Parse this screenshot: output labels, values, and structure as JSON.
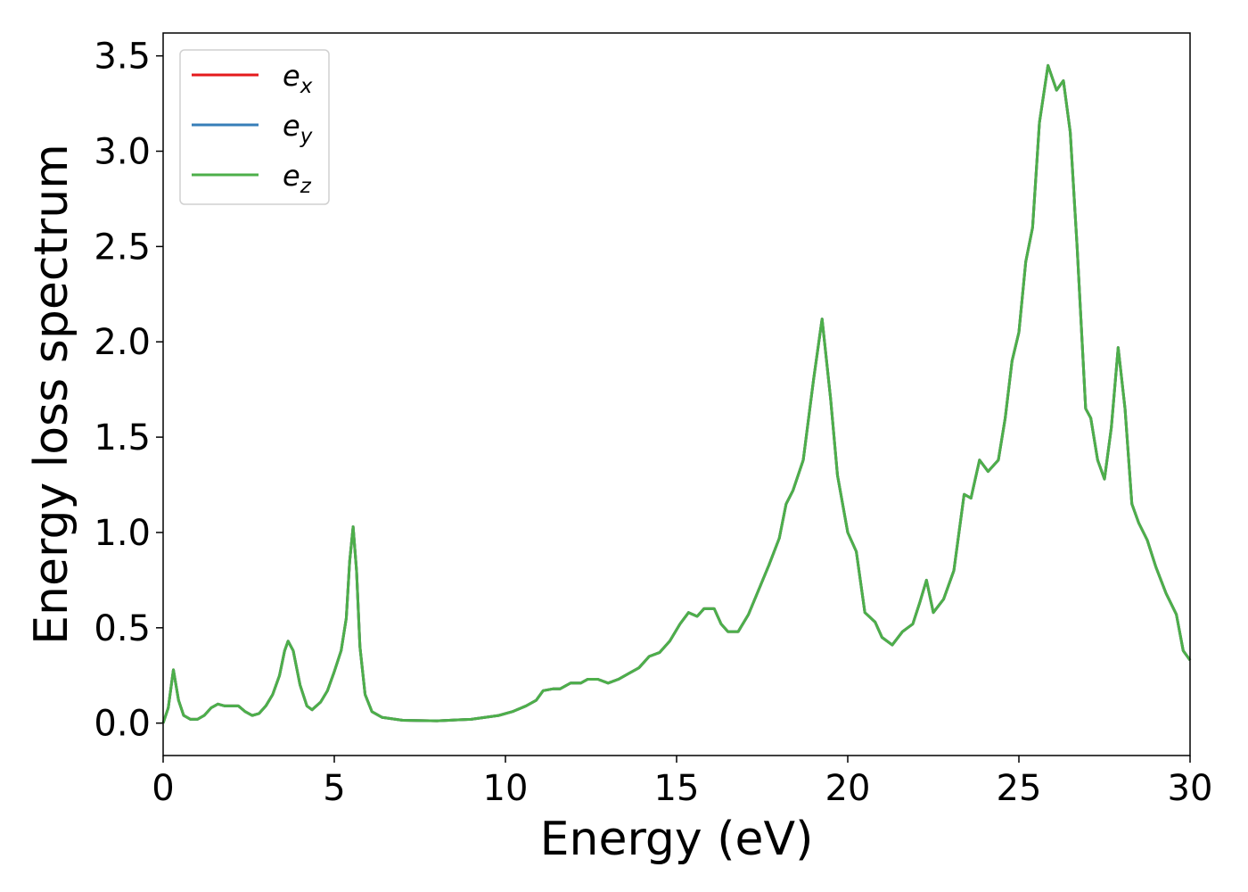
{
  "chart_data": {
    "type": "line",
    "xlabel": "Energy (eV)",
    "ylabel": "Energy loss spectrum",
    "x": [
      0,
      0.15,
      0.3,
      0.45,
      0.6,
      0.8,
      1.0,
      1.2,
      1.4,
      1.6,
      1.8,
      2.0,
      2.2,
      2.4,
      2.6,
      2.8,
      3.0,
      3.2,
      3.4,
      3.55,
      3.65,
      3.8,
      4.0,
      4.2,
      4.35,
      4.6,
      4.8,
      5.0,
      5.2,
      5.35,
      5.45,
      5.55,
      5.65,
      5.75,
      5.9,
      6.1,
      6.4,
      7.0,
      8.0,
      9.0,
      9.8,
      10.2,
      10.6,
      10.9,
      11.1,
      11.4,
      11.6,
      11.9,
      12.2,
      12.4,
      12.7,
      13.0,
      13.3,
      13.6,
      13.9,
      14.2,
      14.5,
      14.8,
      15.1,
      15.35,
      15.6,
      15.8,
      16.1,
      16.3,
      16.5,
      16.8,
      17.1,
      17.4,
      17.7,
      18.0,
      18.2,
      18.4,
      18.7,
      19.0,
      19.25,
      19.5,
      19.7,
      20.0,
      20.25,
      20.5,
      20.8,
      21.0,
      21.3,
      21.6,
      21.9,
      22.1,
      22.3,
      22.5,
      22.8,
      23.1,
      23.4,
      23.6,
      23.85,
      24.1,
      24.4,
      24.6,
      24.8,
      25.0,
      25.2,
      25.4,
      25.6,
      25.85,
      26.1,
      26.3,
      26.5,
      26.7,
      26.95,
      27.1,
      27.3,
      27.5,
      27.7,
      27.9,
      28.1,
      28.3,
      28.5,
      28.75,
      29.0,
      29.3,
      29.6,
      29.8,
      30.0
    ],
    "series": [
      {
        "name": "ex",
        "color": "#e41a1c",
        "values": [
          0,
          0.08,
          0.28,
          0.12,
          0.04,
          0.02,
          0.02,
          0.04,
          0.08,
          0.1,
          0.09,
          0.09,
          0.09,
          0.06,
          0.04,
          0.05,
          0.09,
          0.15,
          0.25,
          0.38,
          0.43,
          0.38,
          0.2,
          0.09,
          0.07,
          0.11,
          0.17,
          0.27,
          0.38,
          0.55,
          0.85,
          1.03,
          0.8,
          0.4,
          0.15,
          0.06,
          0.03,
          0.015,
          0.012,
          0.02,
          0.04,
          0.06,
          0.09,
          0.12,
          0.17,
          0.18,
          0.18,
          0.21,
          0.21,
          0.23,
          0.23,
          0.21,
          0.23,
          0.26,
          0.29,
          0.35,
          0.37,
          0.43,
          0.52,
          0.58,
          0.56,
          0.6,
          0.6,
          0.52,
          0.48,
          0.48,
          0.57,
          0.7,
          0.83,
          0.97,
          1.15,
          1.22,
          1.38,
          1.8,
          2.12,
          1.7,
          1.3,
          1.0,
          0.9,
          0.58,
          0.53,
          0.45,
          0.41,
          0.48,
          0.52,
          0.63,
          0.75,
          0.58,
          0.65,
          0.8,
          1.2,
          1.18,
          1.38,
          1.32,
          1.38,
          1.6,
          1.9,
          2.05,
          2.42,
          2.6,
          3.15,
          3.45,
          3.32,
          3.37,
          3.1,
          2.5,
          1.65,
          1.6,
          1.38,
          1.28,
          1.55,
          1.97,
          1.65,
          1.15,
          1.05,
          0.96,
          0.82,
          0.68,
          0.57,
          0.38,
          0.33
        ]
      },
      {
        "name": "ey",
        "color": "#377eb8",
        "values": [
          0,
          0.08,
          0.28,
          0.12,
          0.04,
          0.02,
          0.02,
          0.04,
          0.08,
          0.1,
          0.09,
          0.09,
          0.09,
          0.06,
          0.04,
          0.05,
          0.09,
          0.15,
          0.25,
          0.38,
          0.43,
          0.38,
          0.2,
          0.09,
          0.07,
          0.11,
          0.17,
          0.27,
          0.38,
          0.55,
          0.85,
          1.03,
          0.8,
          0.4,
          0.15,
          0.06,
          0.03,
          0.015,
          0.012,
          0.02,
          0.04,
          0.06,
          0.09,
          0.12,
          0.17,
          0.18,
          0.18,
          0.21,
          0.21,
          0.23,
          0.23,
          0.21,
          0.23,
          0.26,
          0.29,
          0.35,
          0.37,
          0.43,
          0.52,
          0.58,
          0.56,
          0.6,
          0.6,
          0.52,
          0.48,
          0.48,
          0.57,
          0.7,
          0.83,
          0.97,
          1.15,
          1.22,
          1.38,
          1.8,
          2.12,
          1.7,
          1.3,
          1.0,
          0.9,
          0.58,
          0.53,
          0.45,
          0.41,
          0.48,
          0.52,
          0.63,
          0.75,
          0.58,
          0.65,
          0.8,
          1.2,
          1.18,
          1.38,
          1.32,
          1.38,
          1.6,
          1.9,
          2.05,
          2.42,
          2.6,
          3.15,
          3.45,
          3.32,
          3.37,
          3.1,
          2.5,
          1.65,
          1.6,
          1.38,
          1.28,
          1.55,
          1.97,
          1.65,
          1.15,
          1.05,
          0.96,
          0.82,
          0.68,
          0.57,
          0.38,
          0.33
        ]
      },
      {
        "name": "ez",
        "color": "#4daf4a",
        "values": [
          0,
          0.08,
          0.28,
          0.12,
          0.04,
          0.02,
          0.02,
          0.04,
          0.08,
          0.1,
          0.09,
          0.09,
          0.09,
          0.06,
          0.04,
          0.05,
          0.09,
          0.15,
          0.25,
          0.38,
          0.43,
          0.38,
          0.2,
          0.09,
          0.07,
          0.11,
          0.17,
          0.27,
          0.38,
          0.55,
          0.85,
          1.03,
          0.8,
          0.4,
          0.15,
          0.06,
          0.03,
          0.015,
          0.012,
          0.02,
          0.04,
          0.06,
          0.09,
          0.12,
          0.17,
          0.18,
          0.18,
          0.21,
          0.21,
          0.23,
          0.23,
          0.21,
          0.23,
          0.26,
          0.29,
          0.35,
          0.37,
          0.43,
          0.52,
          0.58,
          0.56,
          0.6,
          0.6,
          0.52,
          0.48,
          0.48,
          0.57,
          0.7,
          0.83,
          0.97,
          1.15,
          1.22,
          1.38,
          1.8,
          2.12,
          1.7,
          1.3,
          1.0,
          0.9,
          0.58,
          0.53,
          0.45,
          0.41,
          0.48,
          0.52,
          0.63,
          0.75,
          0.58,
          0.65,
          0.8,
          1.2,
          1.18,
          1.38,
          1.32,
          1.38,
          1.6,
          1.9,
          2.05,
          2.42,
          2.6,
          3.15,
          3.45,
          3.32,
          3.37,
          3.1,
          2.5,
          1.65,
          1.6,
          1.38,
          1.28,
          1.55,
          1.97,
          1.65,
          1.15,
          1.05,
          0.96,
          0.82,
          0.68,
          0.57,
          0.38,
          0.33
        ]
      }
    ],
    "xlim": [
      0,
      30
    ],
    "xticks": [
      0,
      5,
      10,
      15,
      20,
      25,
      30
    ],
    "ylim": [
      -0.17,
      3.62
    ],
    "yticks": [
      {
        "value": 0,
        "label": "0.0"
      },
      0.5,
      {
        "value": 1,
        "label": "1.0"
      },
      1.5,
      {
        "value": 2,
        "label": "2.0"
      },
      2.5,
      {
        "value": 3,
        "label": "3.0"
      },
      3.5
    ],
    "legend": "upper left"
  }
}
